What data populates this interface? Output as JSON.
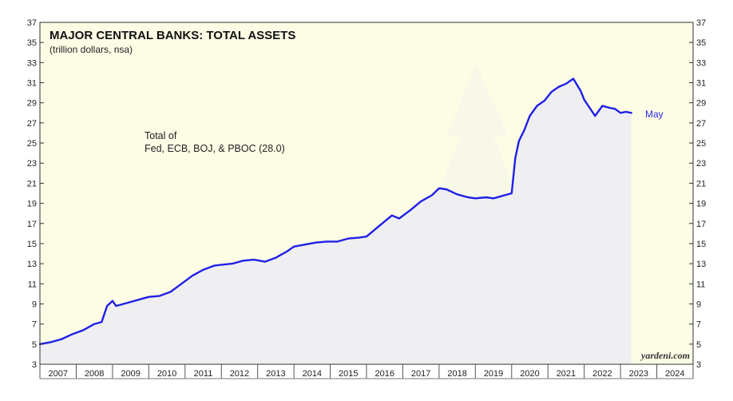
{
  "chart_data": {
    "type": "area",
    "title": "MAJOR CENTRAL BANKS: TOTAL ASSETS",
    "subtitle": "(trillion dollars, nsa)",
    "annotation_line1": "Total of",
    "annotation_line2": "Fed, ECB, BOJ, & PBOC (28.0)",
    "end_label": "May",
    "source": "yardeni.com",
    "ylim": [
      3,
      37
    ],
    "y_ticks": [
      "3",
      "5",
      "7",
      "9",
      "11",
      "13",
      "15",
      "17",
      "19",
      "21",
      "23",
      "25",
      "27",
      "29",
      "31",
      "33",
      "35",
      "37"
    ],
    "x_range": [
      2007.0,
      2025.0
    ],
    "x_categories": [
      "2007",
      "2008",
      "2009",
      "2010",
      "2011",
      "2012",
      "2013",
      "2014",
      "2015",
      "2016",
      "2017",
      "2018",
      "2019",
      "2020",
      "2021",
      "2022",
      "2023",
      "2024"
    ],
    "grid": false,
    "colors": {
      "line": "#1f1fe6",
      "fill": "#efeff2",
      "plot_bg": "#fdfde6"
    },
    "series": [
      {
        "x": [
          2007.0,
          2007.3,
          2007.6,
          2007.9,
          2008.2,
          2008.5,
          2008.7,
          2008.85,
          2009.0,
          2009.1,
          2009.3,
          2009.5,
          2009.8,
          2010.0,
          2010.3,
          2010.6,
          2010.9,
          2011.2,
          2011.5,
          2011.8,
          2012.0,
          2012.3,
          2012.6,
          2012.9,
          2013.2,
          2013.5,
          2013.8,
          2014.0,
          2014.3,
          2014.6,
          2014.9,
          2015.2,
          2015.5,
          2015.8,
          2016.0,
          2016.2,
          2016.5,
          2016.7,
          2016.9,
          2017.2,
          2017.5,
          2017.8,
          2018.0,
          2018.2,
          2018.5,
          2018.8,
          2019.0,
          2019.3,
          2019.5,
          2019.8,
          2020.0,
          2020.1,
          2020.2,
          2020.35,
          2020.5,
          2020.7,
          2020.9,
          2021.1,
          2021.3,
          2021.5,
          2021.7,
          2021.9,
          2022.0,
          2022.15,
          2022.3,
          2022.5,
          2022.7,
          2022.85,
          2023.0,
          2023.15,
          2023.3
        ],
        "values": [
          5.0,
          5.2,
          5.5,
          6.0,
          6.4,
          7.0,
          7.2,
          8.8,
          9.3,
          8.8,
          9.0,
          9.2,
          9.5,
          9.7,
          9.8,
          10.2,
          11.0,
          11.8,
          12.4,
          12.8,
          12.9,
          13.0,
          13.3,
          13.4,
          13.2,
          13.6,
          14.2,
          14.7,
          14.9,
          15.1,
          15.2,
          15.2,
          15.5,
          15.6,
          15.7,
          16.3,
          17.2,
          17.8,
          17.5,
          18.3,
          19.2,
          19.8,
          20.5,
          20.4,
          19.9,
          19.6,
          19.5,
          19.6,
          19.5,
          19.8,
          20.0,
          23.5,
          25.2,
          26.3,
          27.7,
          28.7,
          29.2,
          30.1,
          30.6,
          30.9,
          31.4,
          30.2,
          29.3,
          28.5,
          27.7,
          28.7,
          28.5,
          28.4,
          28.0,
          28.1,
          28.0
        ]
      }
    ]
  }
}
